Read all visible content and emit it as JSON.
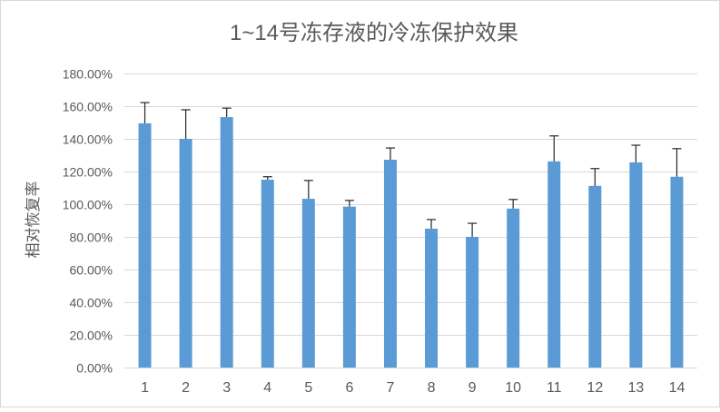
{
  "chart_data": {
    "type": "bar",
    "title": "1~14号冻存液的冷冻保护效果",
    "xlabel": "",
    "ylabel": "相对恢复率",
    "categories": [
      "1",
      "2",
      "3",
      "4",
      "5",
      "6",
      "7",
      "8",
      "9",
      "10",
      "11",
      "12",
      "13",
      "14"
    ],
    "values": [
      149.5,
      140.0,
      153.3,
      115.0,
      103.3,
      98.5,
      127.2,
      85.0,
      80.0,
      97.3,
      126.2,
      111.2,
      125.6,
      116.8
    ],
    "errors_plus": [
      12.7,
      17.8,
      5.5,
      1.8,
      11.2,
      3.8,
      7.2,
      5.6,
      8.3,
      5.6,
      15.6,
      10.6,
      10.5,
      17.2
    ],
    "value_unit": "%",
    "ylim": [
      0,
      180
    ],
    "yticks": [
      0,
      20,
      40,
      60,
      80,
      100,
      120,
      140,
      160,
      180
    ],
    "ytick_labels": [
      "0.00%",
      "20.00%",
      "40.00%",
      "60.00%",
      "80.00%",
      "100.00%",
      "120.00%",
      "140.00%",
      "160.00%",
      "180.00%"
    ],
    "grid": true,
    "legend": "none",
    "colors": {
      "bar": "#5B9BD5",
      "error_bar": "#262626",
      "grid": "#D9D9D9",
      "text": "#595959",
      "border": "#D9D9D9"
    }
  }
}
